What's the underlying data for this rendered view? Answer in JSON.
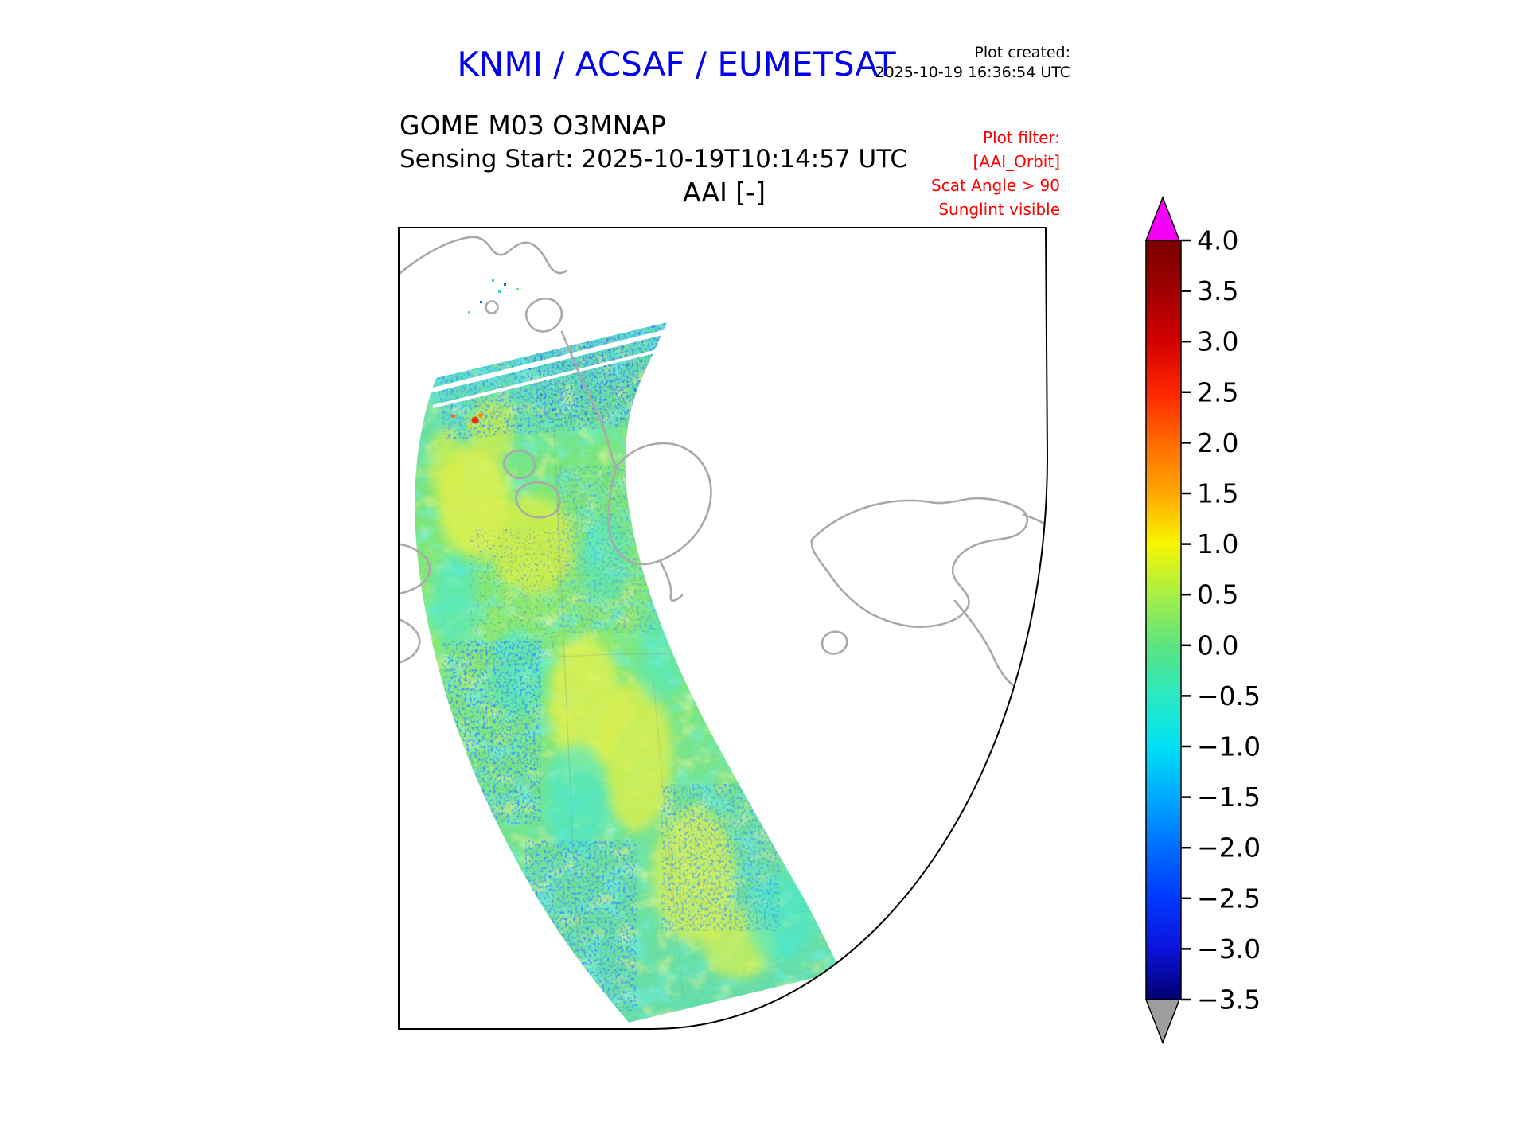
{
  "header": {
    "title": "KNMI / ACSAF / EUMETSAT",
    "title_color": "#0202ee",
    "plot_created_label": "Plot created:",
    "plot_created_value": "2025-10-19 16:36:54 UTC"
  },
  "subtitle": {
    "product_line": "GOME M03 O3MNAP",
    "sensing_line": "Sensing Start: 2025-10-19T10:14:57 UTC",
    "map_title": "AAI [-]"
  },
  "plot_filter": {
    "color": "#ff0000",
    "lines": [
      "Plot filter:",
      "[AAI_Orbit]",
      "Scat Angle > 90",
      "Sunglint visible"
    ]
  },
  "map": {
    "coastline_color": "#a9a9a9",
    "frame_color": "#000000",
    "background": "#ffffff"
  },
  "colorbar": {
    "min": -3.5,
    "max": 4.0,
    "tick_step": 0.5,
    "over_arrow_color": "#f400f4",
    "under_arrow_color": "#9e9e9e",
    "ticks": [
      "4.0",
      "3.5",
      "3.0",
      "2.5",
      "2.0",
      "1.5",
      "1.0",
      "0.5",
      "0.0",
      "−0.5",
      "−1.0",
      "−1.5",
      "−2.0",
      "−2.5",
      "−3.0",
      "−3.5"
    ],
    "colormap_stops": [
      {
        "value": 4.0,
        "color": "#7a0000"
      },
      {
        "value": 3.5,
        "color": "#9f0000"
      },
      {
        "value": 3.0,
        "color": "#d30000"
      },
      {
        "value": 2.5,
        "color": "#ff2600"
      },
      {
        "value": 2.0,
        "color": "#ff6b00"
      },
      {
        "value": 1.5,
        "color": "#ffa800"
      },
      {
        "value": 1.0,
        "color": "#f8f500"
      },
      {
        "value": 0.5,
        "color": "#a8ef46"
      },
      {
        "value": 0.0,
        "color": "#5ce37f"
      },
      {
        "value": -0.5,
        "color": "#2ae9c3"
      },
      {
        "value": -1.0,
        "color": "#00e1f5"
      },
      {
        "value": -1.5,
        "color": "#00a9ff"
      },
      {
        "value": -2.0,
        "color": "#006eff"
      },
      {
        "value": -2.5,
        "color": "#0039ff"
      },
      {
        "value": -3.0,
        "color": "#0d13dc"
      },
      {
        "value": -3.5,
        "color": "#00006e"
      }
    ]
  },
  "chart_data": {
    "type": "heatmap",
    "title": "AAI [-]",
    "product": "GOME M03 O3MNAP",
    "sensing_start": "2025-10-19T10:14:57 UTC",
    "plot_created": "2025-10-19 16:36:54 UTC",
    "quantity": "Absorbing Aerosol Index (AAI), unitless [-]",
    "colorbar_range": [
      -3.5,
      4.0
    ],
    "colorbar_tick_step": 0.5,
    "over_color": "#f400f4",
    "under_color": "#9e9e9e",
    "projection": "azimuthal-style map view, straight top/left edges and curved lower-right boundary, gray coastlines on white background",
    "swath_summary": {
      "description": "Single GOME orbit swath running from the upper-left area of the map down to the bottom; mostly green/cyan pixels near AAI 0 with scattered blue negative speckles and yellow positive patches; two thin white diagonal data-gap stripes near the swath top.",
      "typical_value_range": [
        -2.0,
        1.0
      ],
      "features": [
        {
          "area": "northern-most swath rows (dense speckles)",
          "approx_aai": -1.5
        },
        {
          "area": "isolated hot spot upper-left of swath",
          "approx_aai": 2.5
        },
        {
          "area": "left-central yellow patches",
          "approx_aai": 0.8
        },
        {
          "area": "general swath background",
          "approx_aai": 0.0
        },
        {
          "area": "lower-left blue speckle cluster",
          "approx_aai": -1.2
        },
        {
          "area": "two thin white diagonal stripes near swath top",
          "approx_aai": null
        }
      ]
    }
  }
}
